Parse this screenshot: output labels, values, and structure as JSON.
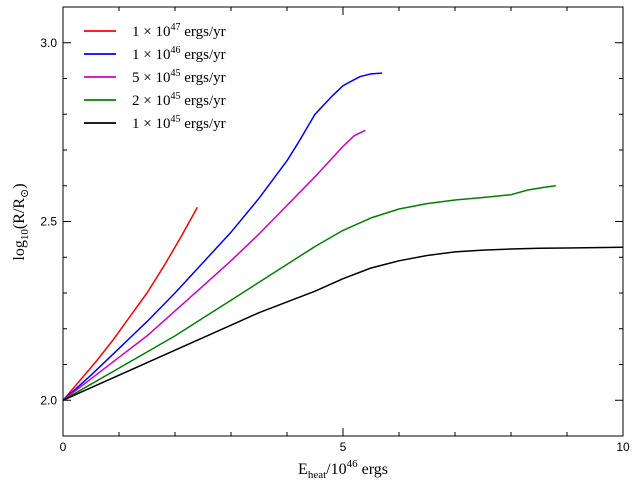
{
  "chart_data": {
    "type": "line",
    "xlabel": {
      "base": "E",
      "sub": "heat",
      "mid": "/10",
      "sup": "46",
      "tail": " ergs"
    },
    "ylabel": {
      "base": "log",
      "sub": "10",
      "tail": "(R/R",
      "sub2": "⊙",
      "close": ")"
    },
    "xlim": [
      0,
      10
    ],
    "ylim": [
      1.9,
      3.1
    ],
    "x_ticks_major": [
      0,
      5,
      10
    ],
    "x_tick_labels": [
      "0",
      "5",
      "10"
    ],
    "x_ticks_minor": [
      1,
      2,
      3,
      4,
      6,
      7,
      8,
      9
    ],
    "y_ticks_major": [
      2.0,
      2.5,
      3.0
    ],
    "y_tick_labels": [
      "2.0",
      "2.5",
      "3.0"
    ],
    "y_ticks_minor": [
      1.9,
      2.1,
      2.2,
      2.3,
      2.4,
      2.6,
      2.7,
      2.8,
      2.9,
      3.1
    ],
    "grid": false,
    "legend_position": "top-left",
    "series": [
      {
        "name": "1 × 10",
        "exp": "47",
        "unit": " ergs/yr",
        "color": "#ff0000",
        "x": [
          0,
          0.3,
          0.6,
          0.9,
          1.2,
          1.5,
          1.8,
          2.1,
          2.4
        ],
        "y": [
          2.0,
          2.055,
          2.11,
          2.17,
          2.235,
          2.3,
          2.375,
          2.455,
          2.54
        ]
      },
      {
        "name": "1 × 10",
        "exp": "46",
        "unit": " ergs/yr",
        "color": "#0000ff",
        "x": [
          0,
          0.5,
          1.0,
          1.5,
          2.0,
          2.5,
          3.0,
          3.5,
          4.0,
          4.2,
          4.5,
          4.8,
          5.0,
          5.3,
          5.5,
          5.7
        ],
        "y": [
          2.0,
          2.07,
          2.145,
          2.22,
          2.3,
          2.385,
          2.47,
          2.565,
          2.67,
          2.72,
          2.8,
          2.85,
          2.88,
          2.905,
          2.913,
          2.915
        ]
      },
      {
        "name": "5 × 10",
        "exp": "45",
        "unit": " ergs/yr",
        "color": "#cc00cc",
        "x": [
          0,
          0.5,
          1.0,
          1.5,
          2.0,
          2.5,
          3.0,
          3.5,
          4.0,
          4.5,
          5.0,
          5.2,
          5.4
        ],
        "y": [
          2.0,
          2.06,
          2.12,
          2.18,
          2.25,
          2.32,
          2.39,
          2.465,
          2.545,
          2.625,
          2.71,
          2.74,
          2.755
        ]
      },
      {
        "name": "2 × 10",
        "exp": "45",
        "unit": " ergs/yr",
        "color": "#008000",
        "x": [
          0,
          0.5,
          1.0,
          1.5,
          2.0,
          2.5,
          3.0,
          3.5,
          4.0,
          4.5,
          5.0,
          5.5,
          6.0,
          6.5,
          7.0,
          7.5,
          8.0,
          8.3,
          8.6,
          8.8
        ],
        "y": [
          2.0,
          2.045,
          2.09,
          2.135,
          2.18,
          2.23,
          2.28,
          2.33,
          2.38,
          2.43,
          2.475,
          2.51,
          2.535,
          2.55,
          2.56,
          2.567,
          2.575,
          2.588,
          2.596,
          2.6
        ]
      },
      {
        "name": "1 × 10",
        "exp": "45",
        "unit": " ergs/yr",
        "color": "#000000",
        "x": [
          0,
          0.5,
          1.0,
          1.5,
          2.0,
          2.5,
          3.0,
          3.5,
          4.0,
          4.5,
          5.0,
          5.5,
          6.0,
          6.5,
          7.0,
          7.5,
          8.0,
          8.5,
          9.0,
          9.5,
          10.0
        ],
        "y": [
          2.0,
          2.035,
          2.07,
          2.105,
          2.14,
          2.175,
          2.21,
          2.245,
          2.275,
          2.305,
          2.34,
          2.37,
          2.39,
          2.405,
          2.415,
          2.42,
          2.423,
          2.425,
          2.426,
          2.427,
          2.428
        ]
      }
    ]
  }
}
